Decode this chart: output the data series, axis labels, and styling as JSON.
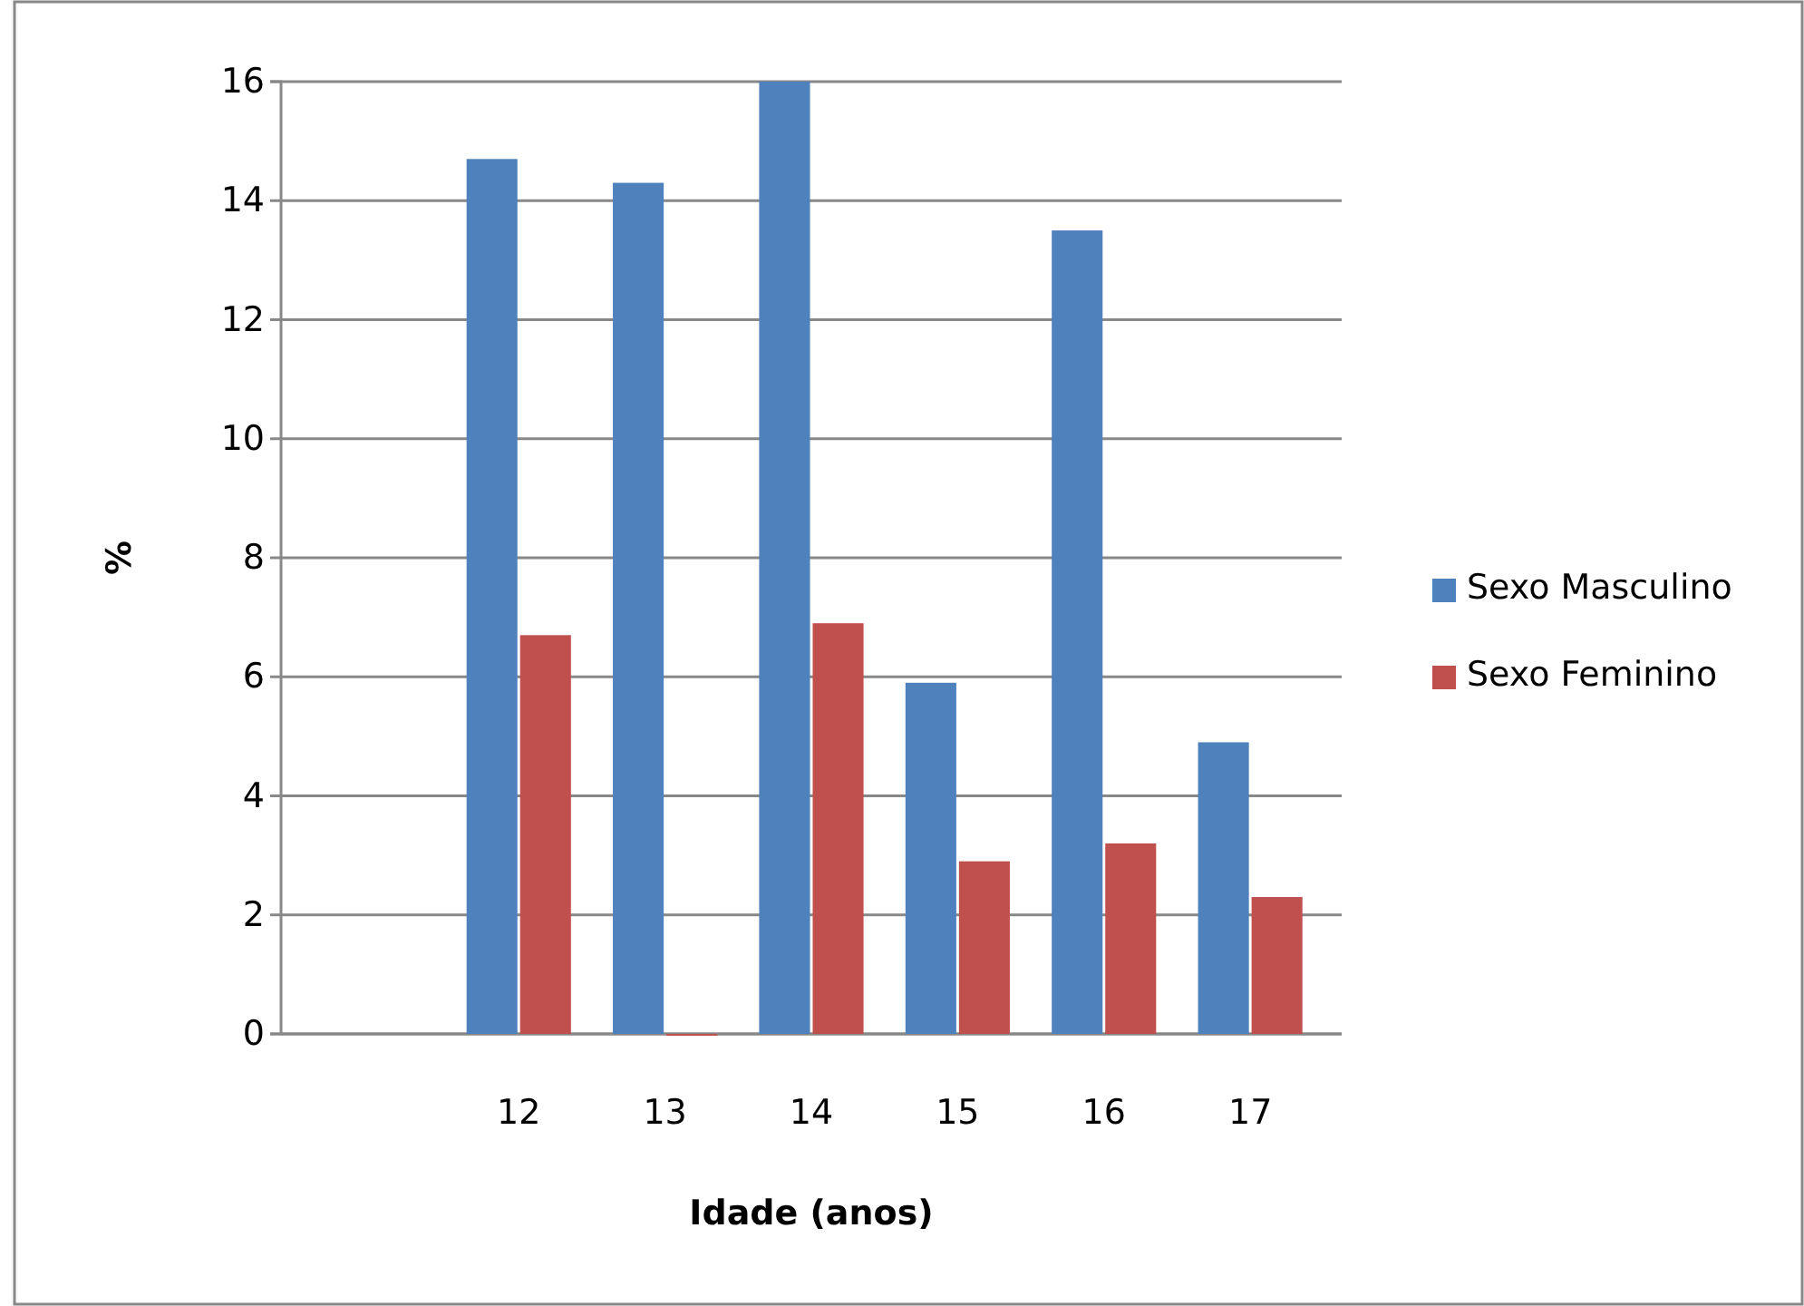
{
  "chart_data": {
    "type": "bar",
    "xlabel": "Idade (anos)",
    "ylabel": "%",
    "categories": [
      null,
      "12",
      "13",
      "14",
      "15",
      "16",
      "17"
    ],
    "series": [
      {
        "name": "Sexo Masculino",
        "color": "#4f81bd",
        "values": [
          null,
          14.7,
          14.3,
          16,
          5.9,
          13.5,
          4.9
        ]
      },
      {
        "name": "Sexo Feminino",
        "color": "#c0504d",
        "values": [
          null,
          6.7,
          0,
          6.9,
          2.9,
          3.2,
          2.3
        ]
      }
    ],
    "ylim": [
      0,
      16
    ],
    "yticks": [
      0,
      2,
      4,
      6,
      8,
      10,
      12,
      14,
      16
    ],
    "grid": "y",
    "legend": "right"
  }
}
